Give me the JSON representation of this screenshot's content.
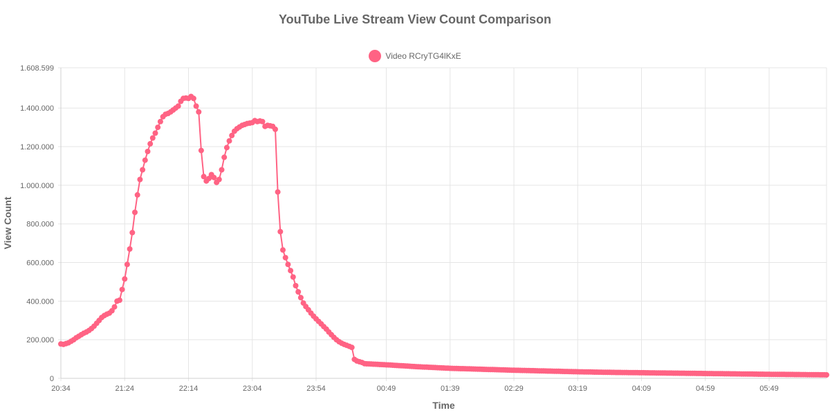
{
  "chart_data": {
    "type": "line",
    "title": "YouTube Live Stream View Count Comparison",
    "xlabel": "Time",
    "ylabel": "View Count",
    "ylim": [
      0,
      1608599
    ],
    "y_ticks": [
      "0",
      "200.000",
      "400.000",
      "600.000",
      "800.000",
      "1.000.000",
      "1.200.000",
      "1.400.000",
      "1.608.599"
    ],
    "y_tick_values": [
      0,
      200000,
      400000,
      600000,
      800000,
      1000000,
      1200000,
      1400000,
      1608599
    ],
    "x_ticks": [
      "20:34",
      "21:24",
      "22:14",
      "23:04",
      "23:54",
      "00:49",
      "01:39",
      "02:29",
      "03:19",
      "04:09",
      "04:59",
      "05:49"
    ],
    "grid": true,
    "legend_position": "top",
    "colors": {
      "series": "#ff6384"
    },
    "series": [
      {
        "name": "Video RCryTG4lKxE",
        "points": [
          [
            "20:34",
            178000
          ],
          [
            "20:36",
            176000
          ],
          [
            "20:38",
            180000
          ],
          [
            "20:40",
            184000
          ],
          [
            "20:42",
            192000
          ],
          [
            "20:44",
            200000
          ],
          [
            "20:46",
            210000
          ],
          [
            "20:48",
            218000
          ],
          [
            "20:50",
            226000
          ],
          [
            "20:52",
            234000
          ],
          [
            "20:54",
            240000
          ],
          [
            "20:56",
            248000
          ],
          [
            "20:58",
            258000
          ],
          [
            "21:00",
            270000
          ],
          [
            "21:02",
            285000
          ],
          [
            "21:04",
            300000
          ],
          [
            "21:06",
            315000
          ],
          [
            "21:08",
            325000
          ],
          [
            "21:10",
            332000
          ],
          [
            "21:12",
            338000
          ],
          [
            "21:14",
            350000
          ],
          [
            "21:16",
            370000
          ],
          [
            "21:18",
            400000
          ],
          [
            "21:20",
            405000
          ],
          [
            "21:22",
            460000
          ],
          [
            "21:24",
            515000
          ],
          [
            "21:26",
            590000
          ],
          [
            "21:28",
            670000
          ],
          [
            "21:30",
            755000
          ],
          [
            "21:32",
            860000
          ],
          [
            "21:34",
            950000
          ],
          [
            "21:36",
            1030000
          ],
          [
            "21:38",
            1080000
          ],
          [
            "21:40",
            1130000
          ],
          [
            "21:42",
            1175000
          ],
          [
            "21:44",
            1215000
          ],
          [
            "21:46",
            1245000
          ],
          [
            "21:48",
            1270000
          ],
          [
            "21:50",
            1300000
          ],
          [
            "21:52",
            1330000
          ],
          [
            "21:54",
            1355000
          ],
          [
            "21:56",
            1368000
          ],
          [
            "21:58",
            1372000
          ],
          [
            "22:00",
            1380000
          ],
          [
            "22:02",
            1390000
          ],
          [
            "22:04",
            1400000
          ],
          [
            "22:06",
            1410000
          ],
          [
            "22:08",
            1435000
          ],
          [
            "22:10",
            1450000
          ],
          [
            "22:12",
            1452000
          ],
          [
            "22:14",
            1450000
          ],
          [
            "22:16",
            1460000
          ],
          [
            "22:18",
            1450000
          ],
          [
            "22:20",
            1410000
          ],
          [
            "22:22",
            1380000
          ],
          [
            "22:24",
            1180000
          ],
          [
            "22:26",
            1045000
          ],
          [
            "22:28",
            1022000
          ],
          [
            "22:30",
            1035000
          ],
          [
            "22:32",
            1055000
          ],
          [
            "22:34",
            1040000
          ],
          [
            "22:36",
            1015000
          ],
          [
            "22:38",
            1030000
          ],
          [
            "22:40",
            1080000
          ],
          [
            "22:42",
            1145000
          ],
          [
            "22:44",
            1195000
          ],
          [
            "22:46",
            1230000
          ],
          [
            "22:48",
            1258000
          ],
          [
            "22:50",
            1280000
          ],
          [
            "22:52",
            1293000
          ],
          [
            "22:54",
            1302000
          ],
          [
            "22:56",
            1310000
          ],
          [
            "22:58",
            1315000
          ],
          [
            "23:00",
            1320000
          ],
          [
            "23:02",
            1322000
          ],
          [
            "23:04",
            1325000
          ],
          [
            "23:06",
            1335000
          ],
          [
            "23:08",
            1330000
          ],
          [
            "23:10",
            1333000
          ],
          [
            "23:12",
            1330000
          ],
          [
            "23:14",
            1305000
          ],
          [
            "23:16",
            1310000
          ],
          [
            "23:18",
            1308000
          ],
          [
            "23:20",
            1305000
          ],
          [
            "23:22",
            1290000
          ],
          [
            "23:24",
            965000
          ],
          [
            "23:26",
            760000
          ],
          [
            "23:28",
            665000
          ],
          [
            "23:30",
            625000
          ],
          [
            "23:32",
            590000
          ],
          [
            "23:34",
            558000
          ],
          [
            "23:36",
            525000
          ],
          [
            "23:38",
            480000
          ],
          [
            "23:40",
            448000
          ],
          [
            "23:42",
            418000
          ],
          [
            "23:44",
            390000
          ],
          [
            "23:46",
            372000
          ],
          [
            "23:48",
            355000
          ],
          [
            "23:50",
            338000
          ],
          [
            "23:52",
            322000
          ],
          [
            "23:54",
            308000
          ],
          [
            "23:56",
            295000
          ],
          [
            "23:58",
            282000
          ],
          [
            "00:00",
            268000
          ],
          [
            "00:02",
            255000
          ],
          [
            "00:04",
            240000
          ],
          [
            "00:06",
            226000
          ],
          [
            "00:08",
            212000
          ],
          [
            "00:10",
            200000
          ],
          [
            "00:12",
            190000
          ],
          [
            "00:14",
            182000
          ],
          [
            "00:16",
            176000
          ],
          [
            "00:18",
            171000
          ],
          [
            "00:20",
            166000
          ],
          [
            "00:22",
            160000
          ],
          [
            "00:24",
            98000
          ],
          [
            "00:26",
            90000
          ],
          [
            "00:28",
            86000
          ],
          [
            "00:30",
            82000
          ],
          [
            "00:32",
            76000
          ],
          [
            "00:49",
            70000
          ],
          [
            "01:14",
            60000
          ],
          [
            "01:39",
            52000
          ],
          [
            "02:04",
            47000
          ],
          [
            "02:29",
            42000
          ],
          [
            "02:54",
            38000
          ],
          [
            "03:19",
            34000
          ],
          [
            "03:44",
            31000
          ],
          [
            "04:09",
            29000
          ],
          [
            "04:34",
            27000
          ],
          [
            "04:59",
            25000
          ],
          [
            "05:24",
            23000
          ],
          [
            "05:49",
            21000
          ],
          [
            "06:14",
            19500
          ],
          [
            "06:34",
            18000
          ]
        ]
      }
    ]
  }
}
